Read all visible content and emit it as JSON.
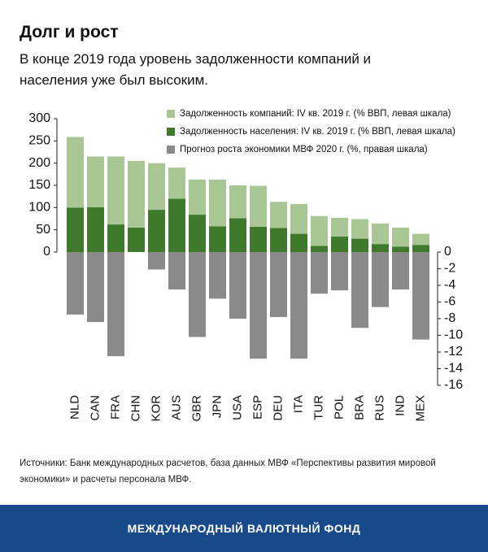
{
  "chart_data": {
    "type": "bar",
    "stacked": true,
    "title": "Долг и рост",
    "subtitle": "В конце 2019 года уровень задолженности компаний и населения уже был высоким.",
    "categories": [
      "NLD",
      "CAN",
      "FRA",
      "CHN",
      "KOR",
      "AUS",
      "GBR",
      "JPN",
      "USA",
      "ESP",
      "DEU",
      "ITA",
      "TUR",
      "POL",
      "BRA",
      "RUS",
      "IND",
      "MEX"
    ],
    "series": [
      {
        "name": "Задолженность компаний: IV кв. 2019 г. (% ВВП, левая шкала)",
        "color": "#a9c795",
        "values": [
          159,
          114,
          153,
          150,
          105,
          70,
          79,
          105,
          74,
          92,
          59,
          67,
          67,
          42,
          44,
          46,
          43,
          25
        ]
      },
      {
        "name": "Задолженность населения: IV кв. 2019 г. (% ВВП, левая шкала)",
        "color": "#3f7a2c",
        "values": [
          100,
          101,
          62,
          55,
          95,
          120,
          84,
          58,
          76,
          57,
          54,
          41,
          14,
          35,
          30,
          18,
          12,
          16
        ]
      },
      {
        "name": "Прогноз роста экономики МВФ 2020 г. (%, правая шкала)",
        "color": "#8a8a8a",
        "axis": "y2",
        "values": [
          -7.5,
          -8.4,
          -12.5,
          1.2,
          -2.1,
          -4.5,
          -10.2,
          -5.6,
          -8.0,
          -12.8,
          -7.8,
          -12.8,
          -5.0,
          -4.6,
          -9.1,
          -6.6,
          -4.5,
          -10.5
        ]
      }
    ],
    "ylim": [
      -300,
      300
    ],
    "yticks": [
      0,
      50,
      100,
      150,
      200,
      250,
      300
    ],
    "y2lim": [
      -16,
      16
    ],
    "y2ticks": [
      0,
      -2,
      -4,
      -6,
      -8,
      -10,
      -12,
      -14,
      -16
    ],
    "grid": false
  },
  "source": "Источники: Банк международных расчетов, база данных МВФ «Перспективы развития мировой экономики» и расчеты персонала МВФ.",
  "footer": "МЕЖДУНАРОДНЫЙ ВАЛЮТНЫЙ ФОНД"
}
